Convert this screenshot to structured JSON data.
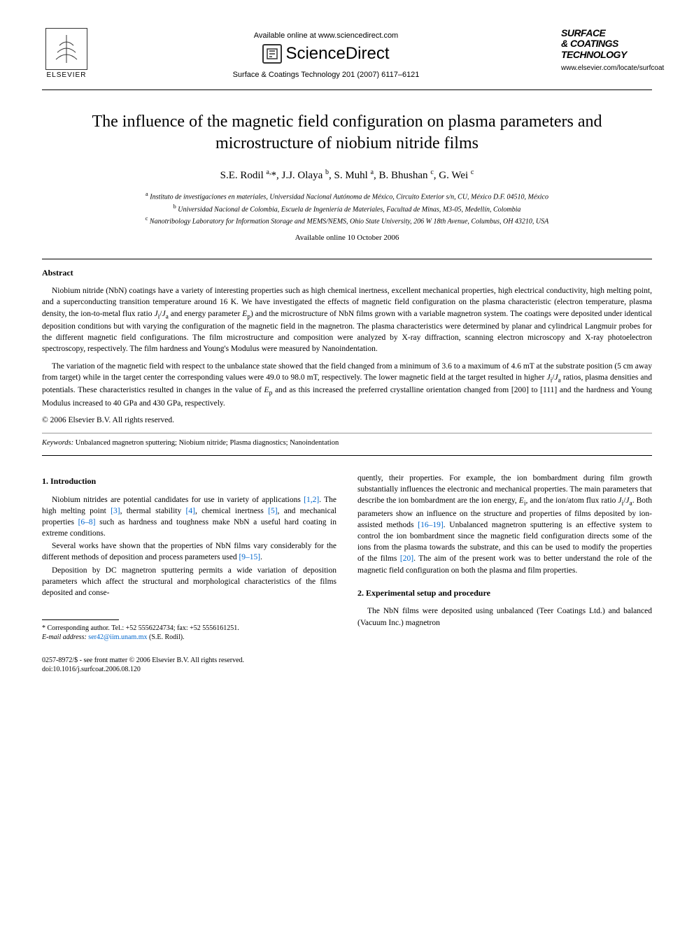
{
  "header": {
    "available_text": "Available online at www.sciencedirect.com",
    "sciencedirect": "ScienceDirect",
    "journal_ref": "Surface & Coatings Technology 201 (2007) 6117–6121",
    "elsevier_label": "ELSEVIER",
    "journal_logo_line1": "SURFACE",
    "journal_logo_line2": "& COATINGS",
    "journal_logo_line3": "TECHNOLOGY",
    "journal_url": "www.elsevier.com/locate/surfcoat"
  },
  "title": "The influence of the magnetic field configuration on plasma parameters and microstructure of niobium nitride films",
  "authors_html": "S.E. Rodil <sup>a,</sup>*, J.J. Olaya <sup>b</sup>, S. Muhl <sup>a</sup>, B. Bhushan <sup>c</sup>, G. Wei <sup>c</sup>",
  "affiliations": {
    "a": "Instituto de investigaciones en materiales, Universidad Nacional Autónoma de México, Circuito Exterior s/n, CU, México D.F. 04510, México",
    "b": "Universidad Nacional de Colombia, Escuela de Ingeniería de Materiales, Facultad de Minas, M3-05, Medellín, Colombia",
    "c": "Nanotribology Laboratory for Information Storage and MEMS/NEMS, Ohio State University, 206 W 18th Avenue, Columbus, OH 43210, USA"
  },
  "available_date": "Available online 10 October 2006",
  "abstract": {
    "heading": "Abstract",
    "p1_html": "Niobium nitride (NbN) coatings have a variety of interesting properties such as high chemical inertness, excellent mechanical properties, high electrical conductivity, high melting point, and a superconducting transition temperature around 16 K. We have investigated the effects of magnetic field configuration on the plasma characteristic (electron temperature, plasma density, the ion-to-metal flux ratio <i>J</i><sub>i</sub>/<i>J</i><sub>a</sub> and energy parameter <i>E</i><sub>p</sub>) and the microstructure of NbN films grown with a variable magnetron system. The coatings were deposited under identical deposition conditions but with varying the configuration of the magnetic field in the magnetron. The plasma characteristics were determined by planar and cylindrical Langmuir probes for the different magnetic field configurations. The film microstructure and composition were analyzed by X-ray diffraction, scanning electron microscopy and X-ray photoelectron spectroscopy, respectively. The film hardness and Young's Modulus were measured by Nanoindentation.",
    "p2_html": "The variation of the magnetic field with respect to the unbalance state showed that the field changed from a minimum of 3.6 to a maximum of 4.6 mT at the substrate position (5 cm away from target) while in the target center the corresponding values were 49.0 to 98.0 mT, respectively. The lower magnetic field at the target resulted in higher <i>J</i><sub>i</sub>/<i>J</i><sub>a</sub> ratios, plasma densities and potentials. These characteristics resulted in changes in the value of <i>E</i><sub>p</sub> and as this increased the preferred crystalline orientation changed from [200] to [111] and the hardness and Young Modulus increased to 40 GPa and 430 GPa, respectively.",
    "copyright": "© 2006 Elsevier B.V. All rights reserved."
  },
  "keywords": {
    "label": "Keywords:",
    "text": "Unbalanced magnetron sputtering; Niobium nitride; Plasma diagnostics; Nanoindentation"
  },
  "body": {
    "section1_heading": "1. Introduction",
    "section1_p1_html": "Niobium nitrides are potential candidates for use in variety of applications <span class=\"ref-link\">[1,2]</span>. The high melting point <span class=\"ref-link\">[3]</span>, thermal stability <span class=\"ref-link\">[4]</span>, chemical inertness <span class=\"ref-link\">[5]</span>, and mechanical properties <span class=\"ref-link\">[6–8]</span> such as hardness and toughness make NbN a useful hard coating in extreme conditions.",
    "section1_p2_html": "Several works have shown that the properties of NbN films vary considerably for the different methods of deposition and process parameters used <span class=\"ref-link\">[9–15]</span>.",
    "section1_p3_html": "Deposition by DC magnetron sputtering permits a wide variation of deposition parameters which affect the structural and morphological characteristics of the films deposited and conse-",
    "col2_p1_html": "quently, their properties. For example, the ion bombardment during film growth substantially influences the electronic and mechanical properties. The main parameters that describe the ion bombardment are the ion energy, <i>E</i><sub>i</sub>, and the ion/atom flux ratio <i>J</i><sub>i</sub>/<i>J</i><sub>a</sub>. Both parameters show an influence on the structure and properties of films deposited by ion-assisted methods <span class=\"ref-link\">[16–19]</span>. Unbalanced magnetron sputtering is an effective system to control the ion bombardment since the magnetic field configuration directs some of the ions from the plasma towards the substrate, and this can be used to modify the properties of the films <span class=\"ref-link\">[20]</span>. The aim of the present work was to better understand the role of the magnetic field configuration on both the plasma and film properties.",
    "section2_heading": "2. Experimental setup and procedure",
    "section2_p1_html": "The NbN films were deposited using unbalanced (Teer Coatings Ltd.) and balanced (Vacuum Inc.) magnetron"
  },
  "footnote": {
    "corr": "* Corresponding author. Tel.: +52 5556224734; fax: +52 5556161251.",
    "email_label": "E-mail address:",
    "email": "ser42@iim.unam.mx",
    "email_author": "(S.E. Rodil)."
  },
  "footer": {
    "issn": "0257-8972/$ - see front matter © 2006 Elsevier B.V. All rights reserved.",
    "doi": "doi:10.1016/j.surfcoat.2006.08.120"
  }
}
